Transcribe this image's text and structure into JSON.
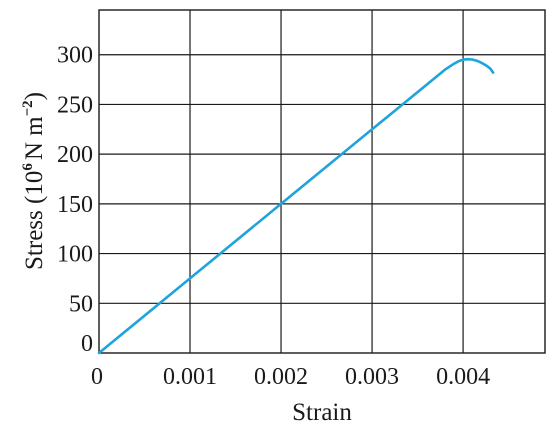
{
  "chart_data": {
    "type": "line",
    "title": "",
    "xlabel": "Strain",
    "ylabel_main": "Stress (10",
    "ylabel_exp1": "6",
    "ylabel_unit": "N m",
    "ylabel_exp2": "−2",
    "ylabel_close": ")",
    "xlim": [
      0,
      0.0049
    ],
    "ylim": [
      0,
      345
    ],
    "grid": true,
    "x_ticks": [
      0,
      0.001,
      0.002,
      0.003,
      0.004
    ],
    "x_tick_labels": [
      "0",
      "0.001",
      "0.002",
      "0.003",
      "0.004"
    ],
    "y_ticks": [
      0,
      50,
      100,
      150,
      200,
      250,
      300
    ],
    "y_tick_labels": [
      "0",
      "50",
      "100",
      "150",
      "200",
      "250",
      "300"
    ],
    "series": [
      {
        "color": "#1fa3dc",
        "x": [
          0,
          0.001,
          0.002,
          0.003,
          0.0038,
          0.0039,
          0.00395,
          0.004,
          0.00405,
          0.0041,
          0.00415,
          0.0042,
          0.00425,
          0.0043,
          0.00433
        ],
        "y": [
          0,
          75,
          150,
          225,
          285,
          291,
          293.5,
          295,
          295.5,
          295.2,
          294,
          292,
          289.5,
          286,
          282
        ]
      }
    ]
  }
}
